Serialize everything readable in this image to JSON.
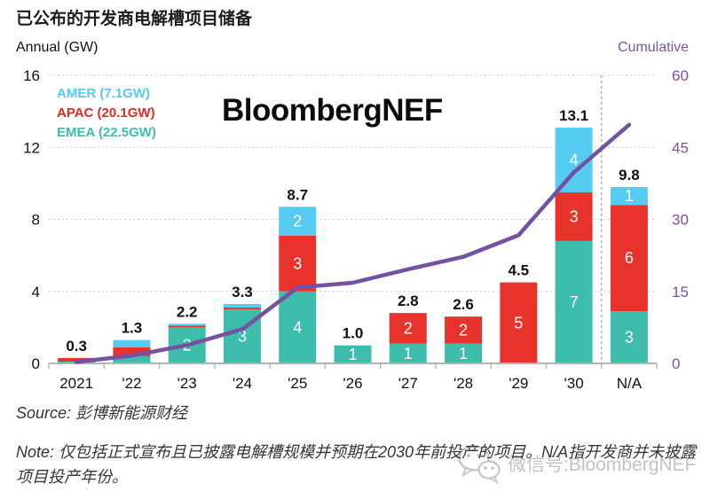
{
  "title": "已公布的开发商电解槽项目储备",
  "left_axis_caption": "Annual (GW)",
  "right_axis_caption": "Cumulative",
  "brand_watermark": "BloombergNEF",
  "legend": {
    "items": [
      {
        "label": "AMER (7.1GW)",
        "color": "#56c8f2"
      },
      {
        "label": "APAC (20.1GW)",
        "color": "#e02a22"
      },
      {
        "label": "EMEA (22.5GW)",
        "color": "#3ebcac"
      }
    ]
  },
  "chart_data": {
    "type": "bar",
    "subtype": "stacked bars with cumulative line on secondary axis",
    "title": "已公布的开发商电解槽项目储备",
    "xlabel": "",
    "ylabel_left": "Annual (GW)",
    "ylabel_right": "Cumulative",
    "categories": [
      "2021",
      "'22",
      "'23",
      "'24",
      "'25",
      "'26",
      "'27",
      "'28",
      "'29",
      "'30",
      "N/A"
    ],
    "series": [
      {
        "name": "EMEA",
        "total_gw": 22.5,
        "color": "#3ebcac",
        "values": [
          0.1,
          0.4,
          2.0,
          3.0,
          4.0,
          1.0,
          1.1,
          1.1,
          0,
          6.8,
          2.9
        ],
        "labels": [
          "",
          "",
          "2",
          "3",
          "4",
          "1",
          "1",
          "1",
          "",
          "7",
          "3"
        ]
      },
      {
        "name": "APAC",
        "total_gw": 20.1,
        "color": "#e8332c",
        "values": [
          0.2,
          0.5,
          0.1,
          0.1,
          3.1,
          0,
          1.7,
          1.5,
          4.5,
          2.7,
          5.9
        ],
        "labels": [
          "",
          "",
          "",
          "",
          "3",
          "",
          "2",
          "2",
          "5",
          "3",
          "6"
        ]
      },
      {
        "name": "AMER",
        "total_gw": 7.1,
        "color": "#56ccf2",
        "values": [
          0,
          0.4,
          0.1,
          0.2,
          1.6,
          0,
          0,
          0,
          0,
          3.6,
          1.0
        ],
        "labels": [
          "",
          "",
          "",
          "",
          "2",
          "",
          "",
          "",
          "",
          "4",
          "1"
        ]
      }
    ],
    "totals": [
      "0.3",
      "1.3",
      "2.2",
      "3.3",
      "8.7",
      "1.0",
      "2.8",
      "2.6",
      "4.5",
      "13.1",
      "9.8"
    ],
    "cumulative_line": {
      "name": "Cumulative",
      "color": "#7451a1",
      "values": [
        0.3,
        1.6,
        3.8,
        7.1,
        15.8,
        16.8,
        19.6,
        22.2,
        26.7,
        39.8,
        49.7
      ]
    },
    "left_axis": {
      "ticks": [
        0,
        4,
        8,
        12,
        16
      ],
      "range": [
        0,
        16
      ]
    },
    "right_axis": {
      "ticks": [
        0,
        15,
        30,
        45,
        60
      ],
      "range": [
        0,
        60
      ],
      "color": "#7a52a8"
    },
    "grid": "dashed horizontal gridlines",
    "dashed_separator_before_category": "N/A",
    "legend_position": "top-left inside plot"
  },
  "footer": {
    "source_prefix": "Source: ",
    "source_text": "彭博新能源财经",
    "note_prefix": "Note: ",
    "note_text": "仅包括正式宣布且已披露电解槽规模并预期在2030年前投产的项目。N/A指开发商并未披露项目投产年份。"
  },
  "wechat_watermark": {
    "icon": "wechat-icon",
    "text": "微信号:BloombergNEF"
  }
}
